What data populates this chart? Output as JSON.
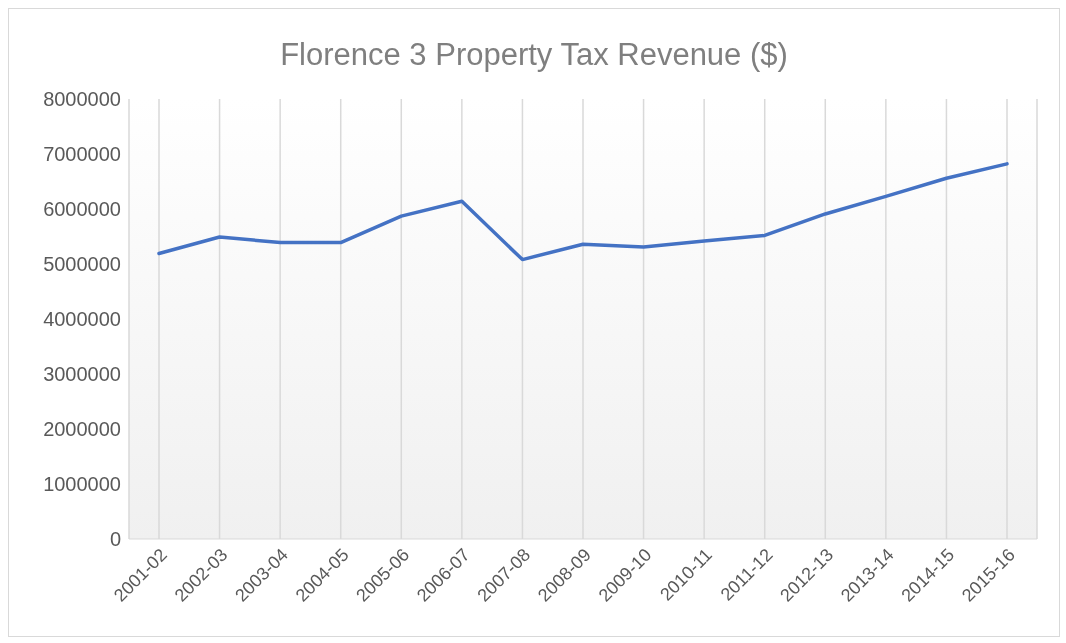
{
  "chart_data": {
    "type": "line",
    "title": "Florence 3 Property Tax Revenue ($)",
    "categories": [
      "2001-02",
      "2002-03",
      "2003-04",
      "2004-05",
      "2005-06",
      "2006-07",
      "2007-08",
      "2008-09",
      "2009-10",
      "2010-11",
      "2011-12",
      "2012-13",
      "2013-14",
      "2014-15",
      "2015-16"
    ],
    "series": [
      {
        "color": "#4472c4",
        "values": [
          5190000,
          5490000,
          5390000,
          5390000,
          5870000,
          6140000,
          5080000,
          5360000,
          5310000,
          5420000,
          5520000,
          5910000,
          6230000,
          6560000,
          6820000
        ]
      }
    ],
    "ylim": [
      0,
      8000000
    ],
    "yticks": [
      0,
      1000000,
      2000000,
      3000000,
      4000000,
      5000000,
      6000000,
      7000000,
      8000000
    ],
    "grid": "x",
    "legend": false,
    "marker": "none",
    "line_style": "solid"
  }
}
